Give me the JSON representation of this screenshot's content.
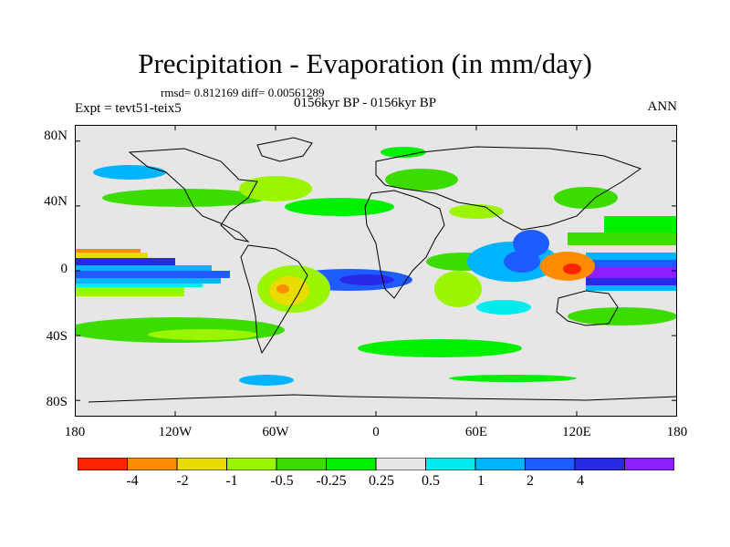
{
  "title": "Precipitation - Evaporation (in mm/day)",
  "stats": "rmsd= 0.812169 diff= 0.00561289",
  "experiment": "Expt = tevt51-teix5",
  "period": "0156kyr BP - 0156kyr BP",
  "season": "ANN",
  "map": {
    "background_color": "#e6e6e6",
    "coastline_color": "#000000",
    "projection": "cylindrical equidistant",
    "lat_range": [
      -90,
      90
    ],
    "lon_range": [
      -180,
      180
    ],
    "lat_ticks": [
      {
        "value": 80,
        "label": "80N"
      },
      {
        "value": 40,
        "label": "40N"
      },
      {
        "value": 0,
        "label": "0"
      },
      {
        "value": -40,
        "label": "40S"
      },
      {
        "value": -80,
        "label": "80S"
      }
    ],
    "lon_ticks": [
      {
        "value": -180,
        "label": "180"
      },
      {
        "value": -120,
        "label": "120W"
      },
      {
        "value": -60,
        "label": "60W"
      },
      {
        "value": 0,
        "label": "0"
      },
      {
        "value": 60,
        "label": "60E"
      },
      {
        "value": 120,
        "label": "120E"
      },
      {
        "value": 180,
        "label": "180"
      }
    ]
  },
  "colorbar": {
    "colors": [
      "#ff2400",
      "#ff8c00",
      "#e8dc00",
      "#9cf500",
      "#3ddc00",
      "#00f000",
      "#e6e6e6",
      "#00ecec",
      "#00b4ff",
      "#1e5cff",
      "#2828e6",
      "#8c1eff"
    ],
    "labels": [
      "-4",
      "-2",
      "-1",
      "-0.5",
      "-0.25",
      "0.25",
      "0.5",
      "1",
      "2",
      "4"
    ]
  }
}
